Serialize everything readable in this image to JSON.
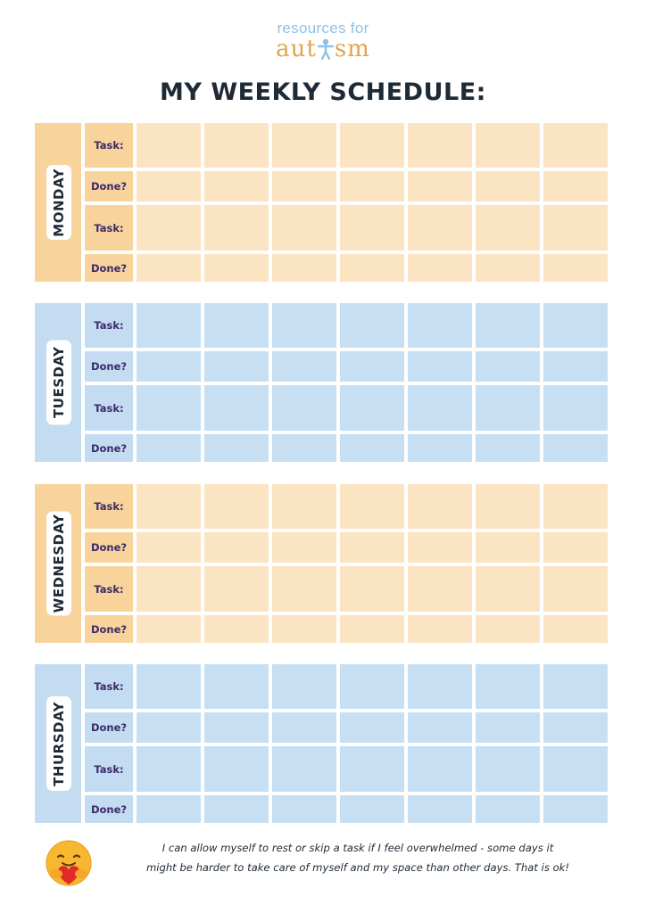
{
  "logo": {
    "line1": "resources for",
    "line2_left": "aut",
    "line2_right": "sm"
  },
  "title": "MY WEEKLY SCHEDULE:",
  "labels": {
    "task": "Task:",
    "done": "Done?"
  },
  "days": [
    {
      "name": "MONDAY",
      "theme": "orange"
    },
    {
      "name": "TUESDAY",
      "theme": "blue"
    },
    {
      "name": "WEDNESDAY",
      "theme": "orange"
    },
    {
      "name": "THURSDAY",
      "theme": "blue"
    }
  ],
  "footer": {
    "line1": "I can allow myself to rest or skip a task  if I feel overwhelmed - some days it",
    "line2": "might be harder to take care of myself and my space than other days. That is ok!"
  },
  "colors": {
    "orange_tab": "#f8d39c",
    "orange_cell": "#fbe4c2",
    "blue_tab": "#c3dcf1",
    "blue_cell": "#c6dff2",
    "title": "#1e2a36",
    "row_label": "#3b2a6a"
  },
  "icons": {
    "logo_figure": "person-figure-icon",
    "emoji": "hugging-heart-emoji-icon"
  }
}
